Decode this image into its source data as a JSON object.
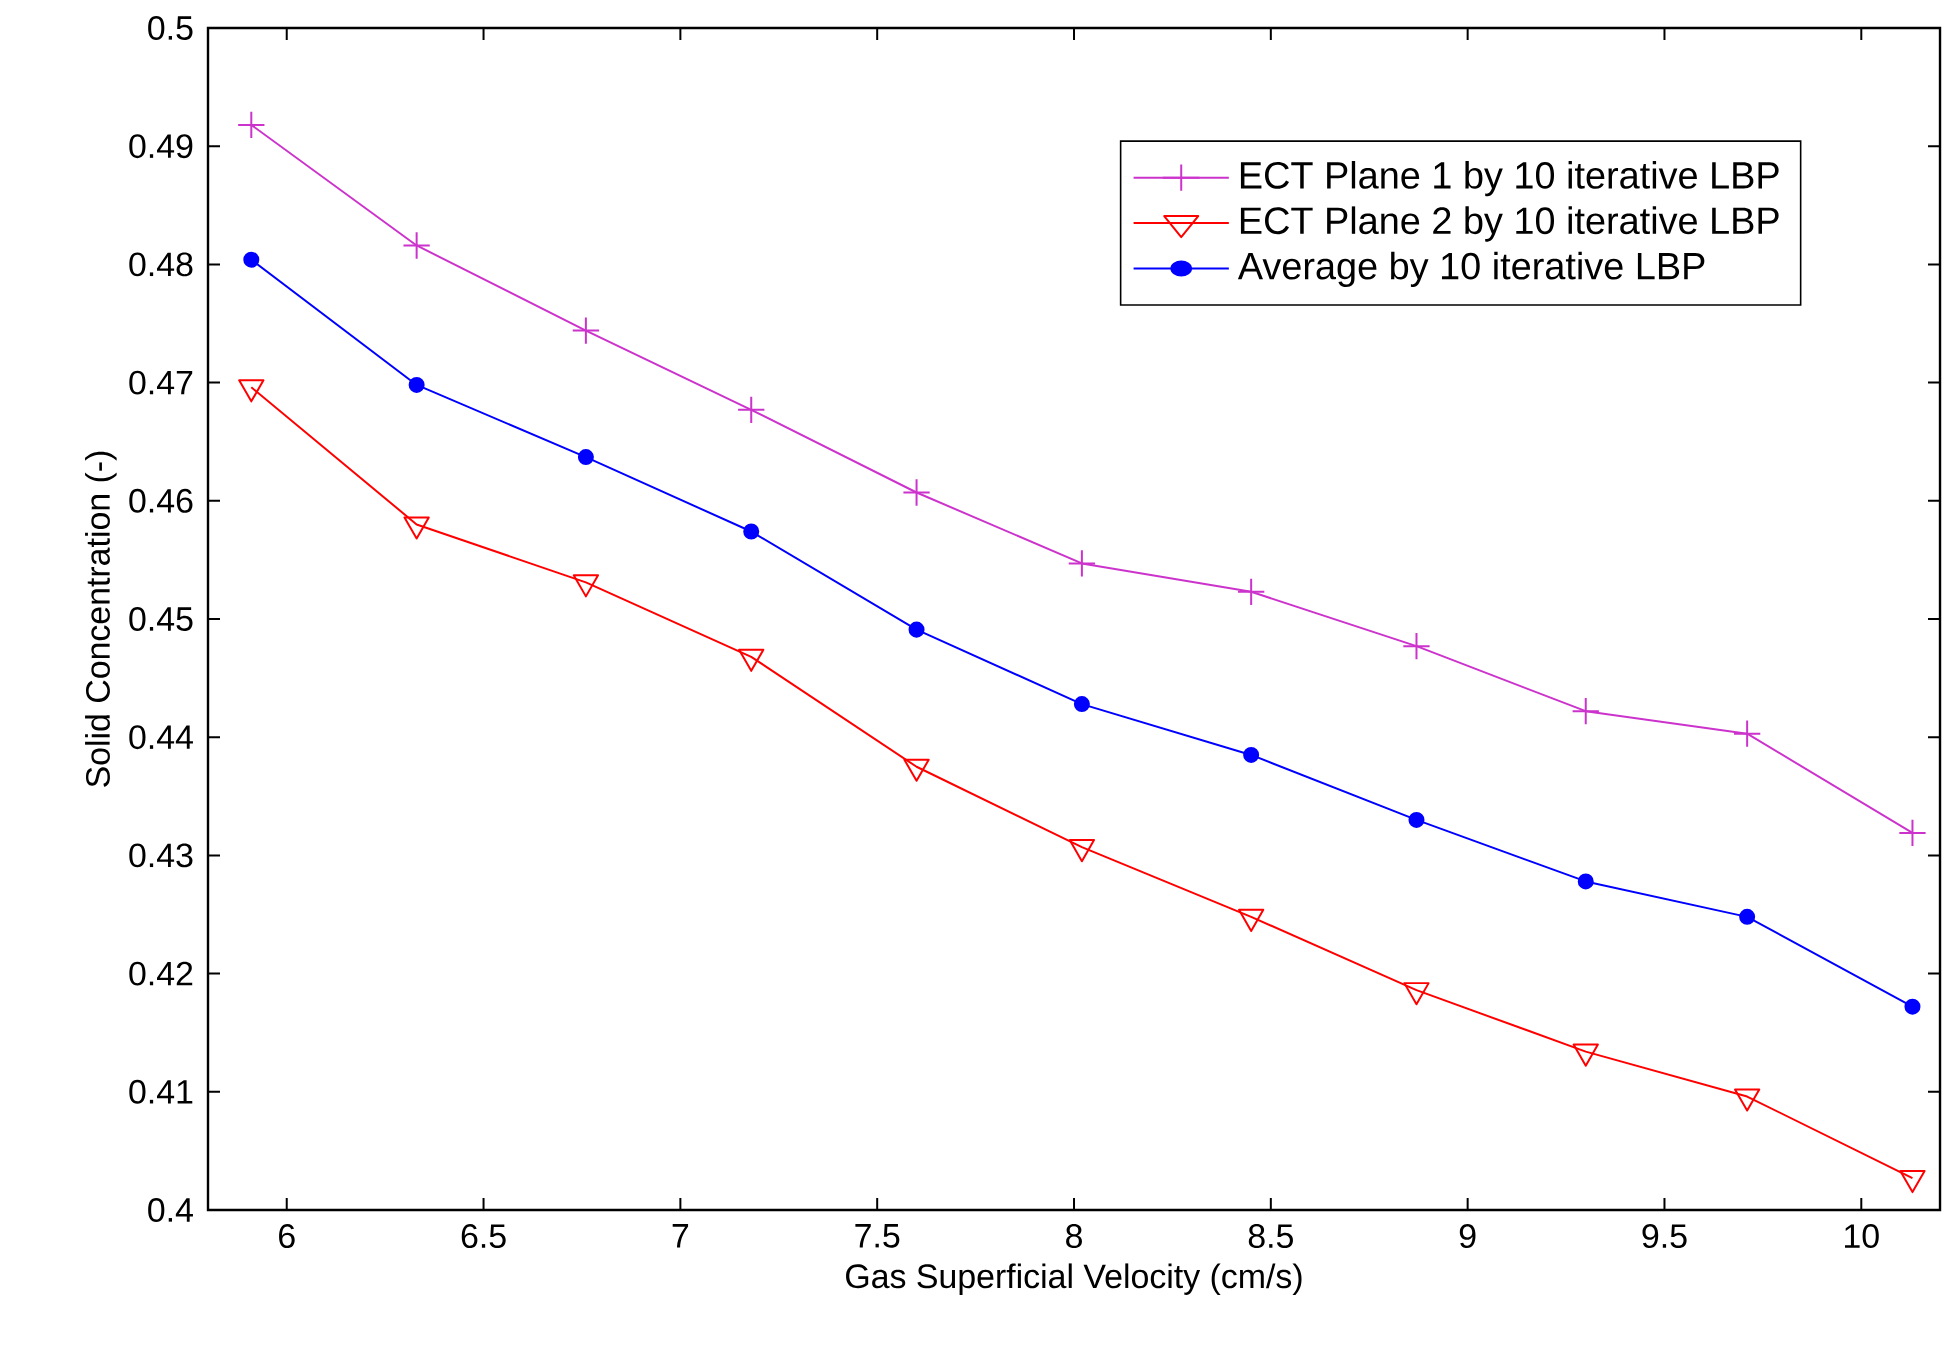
{
  "chart_data": {
    "type": "line",
    "xlabel": "Gas Superficial Velocity (cm/s)",
    "ylabel": "Solid Concentration (-)",
    "x": [
      5.91,
      6.33,
      6.76,
      7.18,
      7.6,
      8.02,
      8.45,
      8.87,
      9.3,
      9.71,
      10.13
    ],
    "series": [
      {
        "name": "ECT Plane 1 by 10 iterative LBP",
        "color": "#cc33cc",
        "marker": "cross",
        "values": [
          0.4918,
          0.4816,
          0.4744,
          0.4677,
          0.4607,
          0.4547,
          0.4523,
          0.4477,
          0.4422,
          0.4403,
          0.4319
        ]
      },
      {
        "name": "ECT Plane 2 by 10 iterative LBP",
        "color": "#ff0000",
        "marker": "triangle",
        "values": [
          0.4696,
          0.458,
          0.4531,
          0.4468,
          0.4375,
          0.4307,
          0.4248,
          0.4186,
          0.4134,
          0.4096,
          0.4027
        ]
      },
      {
        "name": "Average by 10 iterative LBP",
        "color": "#0000ff",
        "marker": "circle",
        "values": [
          0.4804,
          0.4698,
          0.4637,
          0.4574,
          0.4491,
          0.4428,
          0.4385,
          0.433,
          0.4278,
          0.4248,
          0.4172
        ]
      }
    ],
    "xlim": [
      5.8,
      10.2
    ],
    "xticks": [
      6,
      6.5,
      7,
      7.5,
      8,
      8.5,
      9,
      9.5,
      10
    ],
    "ylim": [
      0.4,
      0.5
    ],
    "yticks": [
      0.4,
      0.41,
      0.42,
      0.43,
      0.44,
      0.45,
      0.46,
      0.47,
      0.48,
      0.49,
      0.5
    ],
    "grid": false,
    "legend": "top right",
    "line_style": "solid"
  }
}
